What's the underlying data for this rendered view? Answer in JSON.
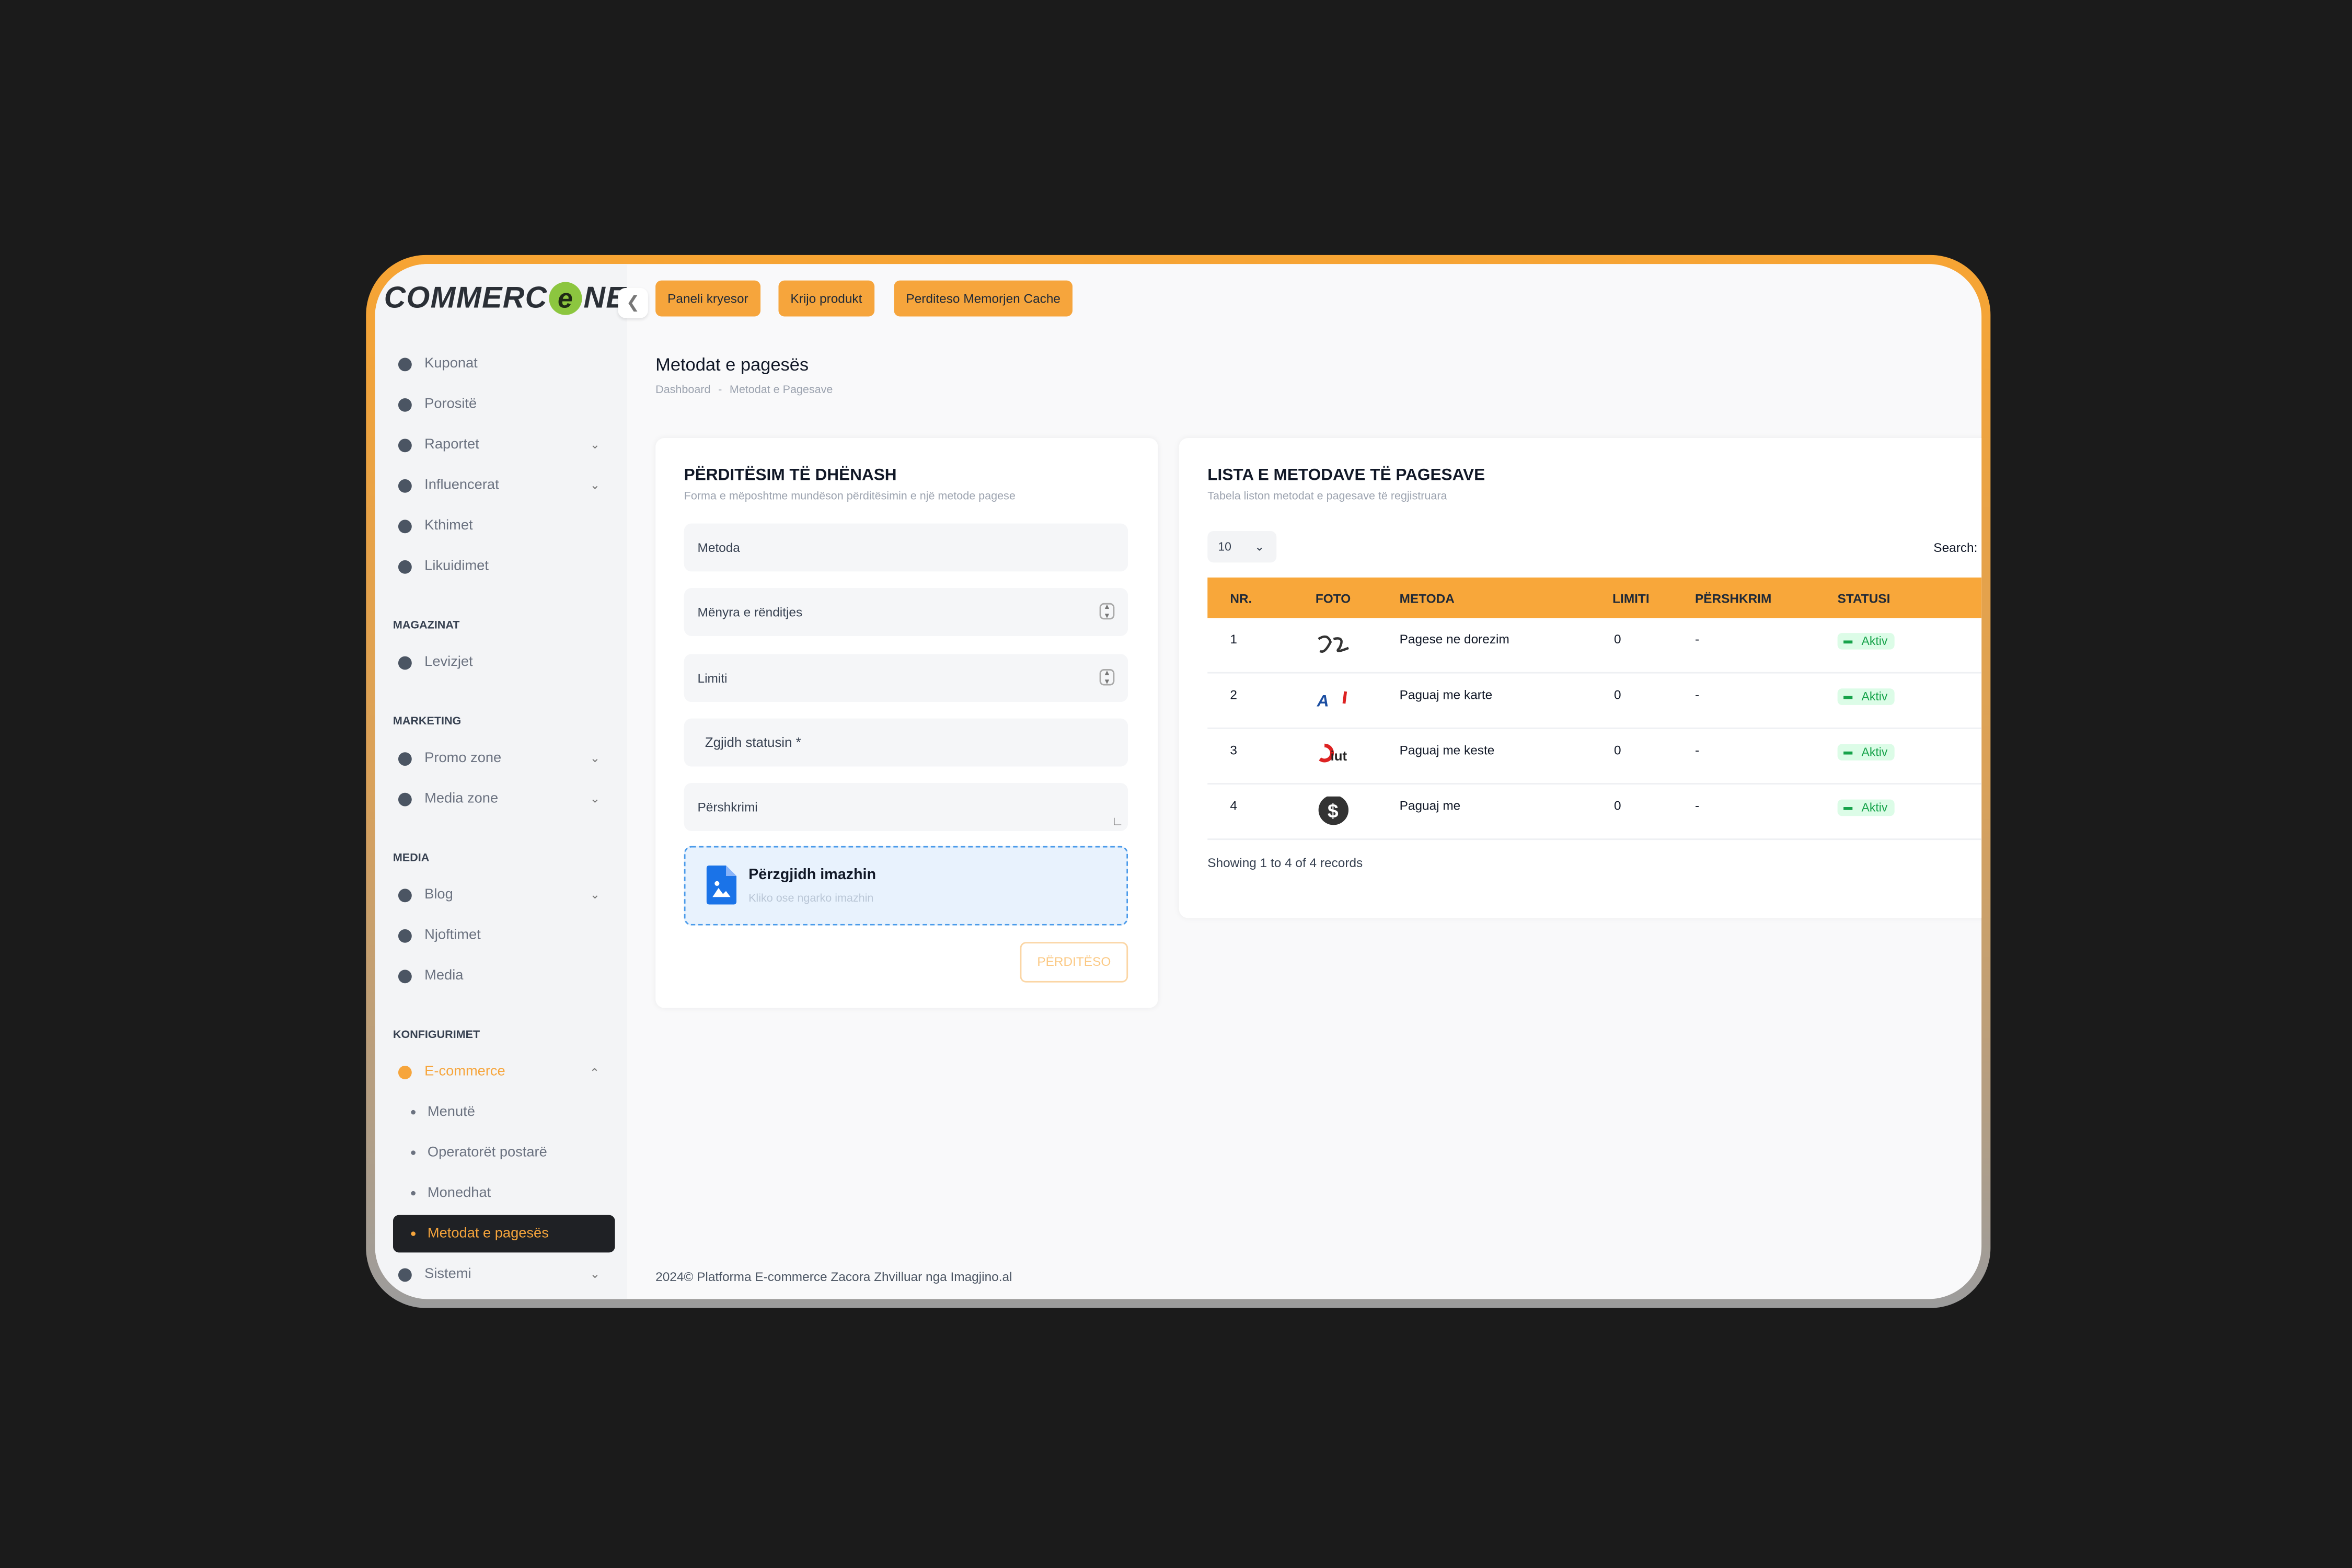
{
  "header": {
    "logo_left": "COMMERC",
    "logo_mark": "e",
    "logo_right": "NE"
  },
  "topbar": {
    "buttons": [
      "Paneli kryesor",
      "Krijo produkt",
      "Perditeso Memorjen Cache"
    ]
  },
  "sidebar": {
    "entries": [
      {
        "kind": "item",
        "label": "Kuponat"
      },
      {
        "kind": "item",
        "label": "Porositë"
      },
      {
        "kind": "item",
        "label": "Raportet",
        "expandable": true
      },
      {
        "kind": "item",
        "label": "Influencerat",
        "expandable": true
      },
      {
        "kind": "item",
        "label": "Kthimet"
      },
      {
        "kind": "item",
        "label": "Likuidimet"
      },
      {
        "kind": "heading",
        "label": "MAGAZINAT"
      },
      {
        "kind": "item",
        "label": "Levizjet"
      },
      {
        "kind": "heading",
        "label": "MARKETING"
      },
      {
        "kind": "item",
        "label": "Promo zone",
        "expandable": true
      },
      {
        "kind": "item",
        "label": "Media zone",
        "expandable": true
      },
      {
        "kind": "heading",
        "label": "MEDIA"
      },
      {
        "kind": "item",
        "label": "Blog",
        "expandable": true
      },
      {
        "kind": "item",
        "label": "Njoftimet"
      },
      {
        "kind": "item",
        "label": "Media"
      },
      {
        "kind": "heading",
        "label": "KONFIGURIMET"
      },
      {
        "kind": "item",
        "label": "E-commerce",
        "expandable": true,
        "open": true
      },
      {
        "kind": "sub",
        "label": "Menutë"
      },
      {
        "kind": "sub",
        "label": "Operatorët postarë"
      },
      {
        "kind": "sub",
        "label": "Monedhat"
      },
      {
        "kind": "sub",
        "label": "Metodat e pagesës",
        "active": true
      },
      {
        "kind": "item",
        "label": "Sistemi",
        "expandable": true
      }
    ]
  },
  "page": {
    "title": "Metodat e pagesës",
    "breadcrumb": [
      "Dashboard",
      "Metodat e Pagesave"
    ]
  },
  "form": {
    "title": "PËRDITËSIM TË DHËNASH",
    "subtitle": "Forma e mëposhtme mundëson përditësimin e një metode pagese",
    "fields": [
      "Metoda",
      "Mënyra e rënditjes",
      "Limiti",
      "Zgjidh statusin *",
      "Përshkrimi"
    ],
    "upload_title": "Përzgjidh imazhin",
    "upload_hint": "Kliko ose ngarko imazhin",
    "button": "PËRDITËSO"
  },
  "table": {
    "title": "LISTA E METODAVE TË PAGESAVE",
    "subtitle": "Tabela liston metodat e pagesave të regjistruara",
    "page_size": "10",
    "search_label": "Search:",
    "columns": [
      "NR.",
      "FOTO",
      "METODA",
      "LIMITI",
      "PËRSHKRIM",
      "STATUSI"
    ],
    "rows": [
      {
        "nr": 1,
        "method": "Pagese ne dorezim",
        "limit": 0,
        "description": "-",
        "status": "Aktiv"
      },
      {
        "nr": 2,
        "method": "Paguaj me karte",
        "limit": 0,
        "description": "-",
        "status": "Aktiv"
      },
      {
        "nr": 3,
        "method": "Paguaj me keste",
        "limit": 0,
        "description": "-",
        "status": "Aktiv"
      },
      {
        "nr": 4,
        "method": "Paguaj me",
        "limit": 0,
        "description": "-",
        "status": "Aktiv"
      }
    ],
    "info": "Showing 1 to 4 of 4 records"
  },
  "footer": {
    "text": "2024© Platforma E-commerce Zacora Zhvilluar nga Imagjino.al"
  }
}
